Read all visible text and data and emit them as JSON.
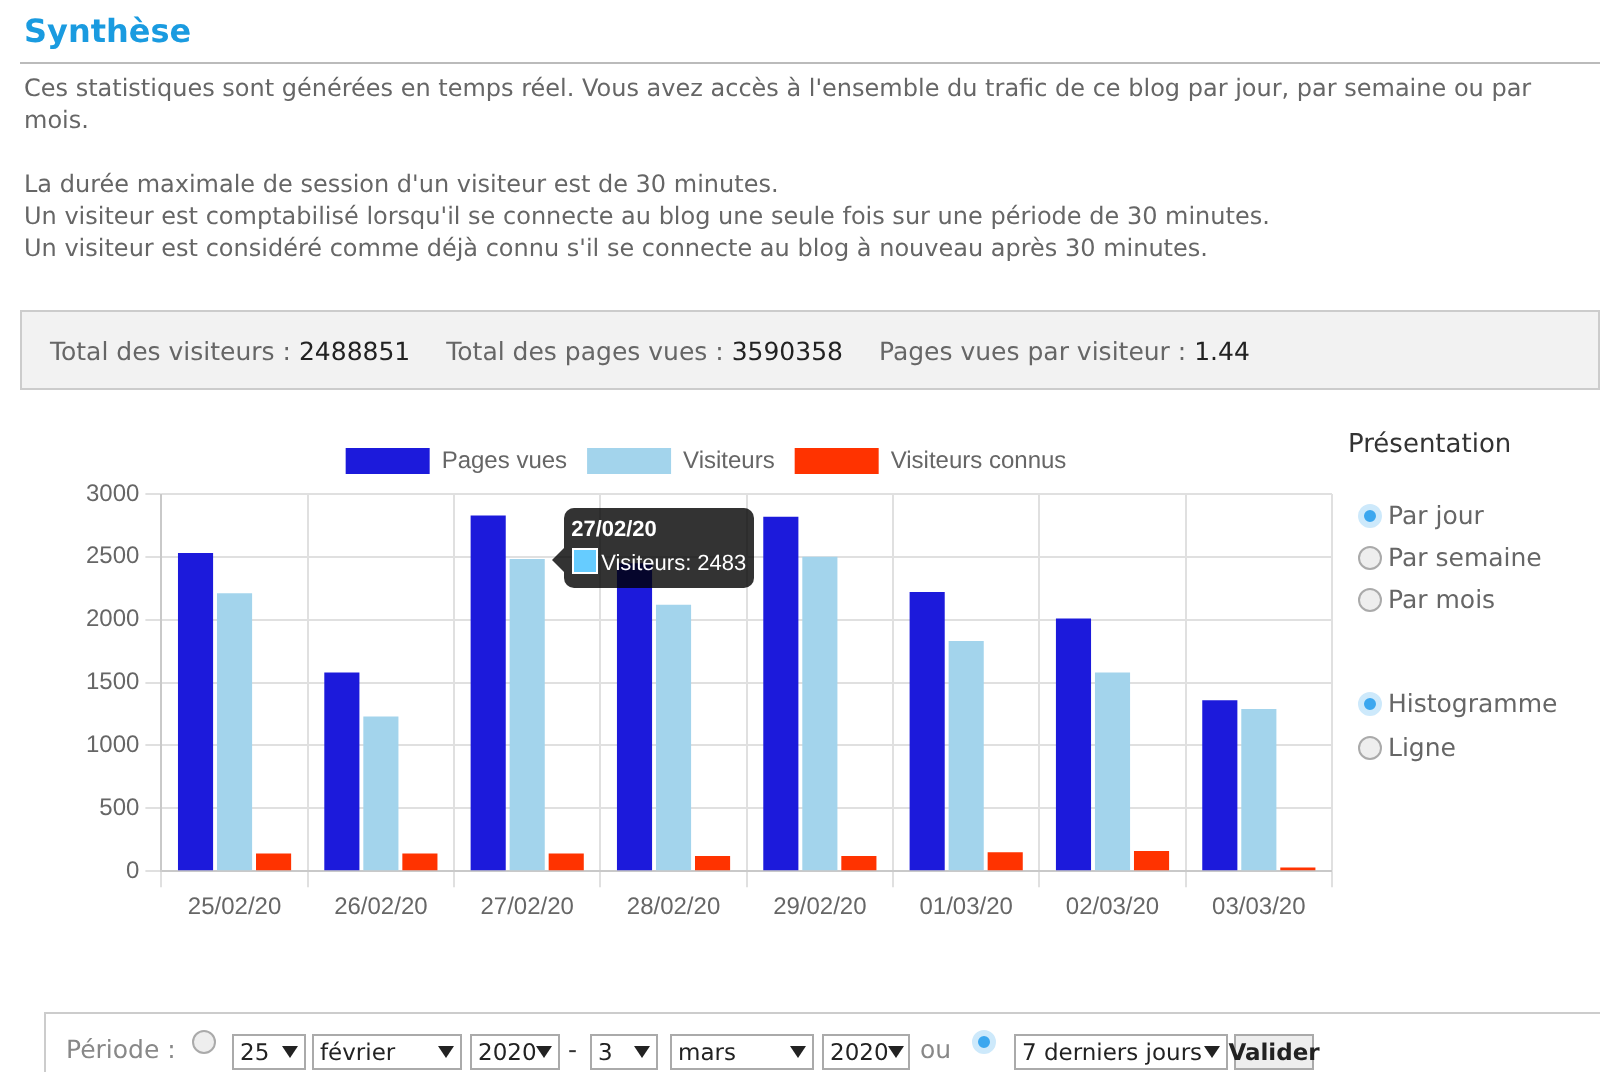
{
  "chart_data": {
    "type": "bar",
    "title": "Synthèse",
    "categories": [
      "25/02/20",
      "26/02/20",
      "27/02/20",
      "28/02/20",
      "29/02/20",
      "01/03/20",
      "02/03/20",
      "03/03/20"
    ],
    "series": [
      {
        "name": "Pages vues",
        "color": "#1c1adb",
        "values": [
          2530,
          1580,
          2830,
          2450,
          2820,
          2220,
          2010,
          1360
        ]
      },
      {
        "name": "Visiteurs",
        "color": "#a3d4ec",
        "values": [
          2210,
          1230,
          2483,
          2120,
          2500,
          1830,
          1580,
          1290
        ]
      },
      {
        "name": "Visiteurs connus",
        "color": "#ff3300",
        "values": [
          140,
          140,
          140,
          120,
          120,
          150,
          160,
          30
        ]
      }
    ],
    "ylim": [
      0,
      3000
    ],
    "yticks": [
      0,
      500,
      1000,
      1500,
      2000,
      2500,
      3000
    ],
    "grid": true,
    "legend": "top",
    "annotations": [
      "Ces statistiques sont générées en temps réel. Vous avez accès à l'ensemble du trafic de ce blog par jour, par semaine ou par mois.",
      "La durée maximale de session d'un visiteur est de 30 minutes.",
      "Un visiteur est comptabilisé lorsqu'il se connecte au blog une seule fois sur une période de 30 minutes.",
      "Un visiteur est considéré comme déjà connu s'il se connecte au blog à nouveau après 30 minutes.",
      "Total des visiteurs : 2488851",
      "Total des pages vues : 3590358",
      "Pages vues par visiteur : 1.44",
      "Présentation",
      "Par jour",
      "Par semaine",
      "Par mois",
      "Histogramme",
      "Ligne",
      "Période :",
      "25",
      "février",
      "2020",
      "-",
      "3",
      "mars",
      "2020",
      "ou",
      "7 derniers jours",
      "Valider",
      {
        "text": "27/02/20\nVisiteurs: 2483",
        "x": "27/02/20",
        "y": 2483
      }
    ]
  }
}
